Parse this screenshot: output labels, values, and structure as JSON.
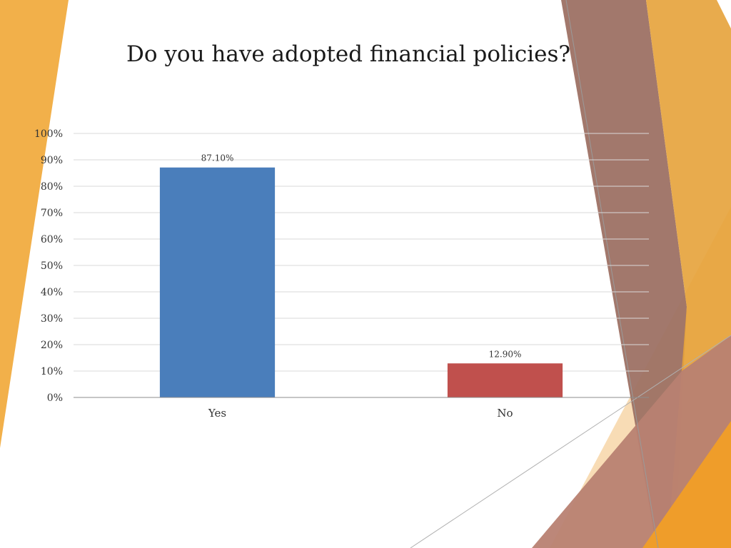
{
  "slide": {
    "decor_colors": [
      "#f2b04a",
      "#9d7164",
      "#b88172",
      "#e6a23a",
      "#f7d6a8"
    ]
  },
  "chart_data": {
    "type": "bar",
    "title": "Do you have adopted financial policies?",
    "categories": [
      "Yes",
      "No"
    ],
    "values": [
      0.871,
      0.129
    ],
    "data_labels": [
      "87.10%",
      "12.90%"
    ],
    "colors": [
      "#4a7ebb",
      "#c0504d"
    ],
    "ylim": [
      0,
      1
    ],
    "yticks": [
      "0%",
      "10%",
      "20%",
      "30%",
      "40%",
      "50%",
      "60%",
      "70%",
      "80%",
      "90%",
      "100%"
    ],
    "grid": true,
    "legend": "none",
    "xlabel": "",
    "ylabel": ""
  }
}
